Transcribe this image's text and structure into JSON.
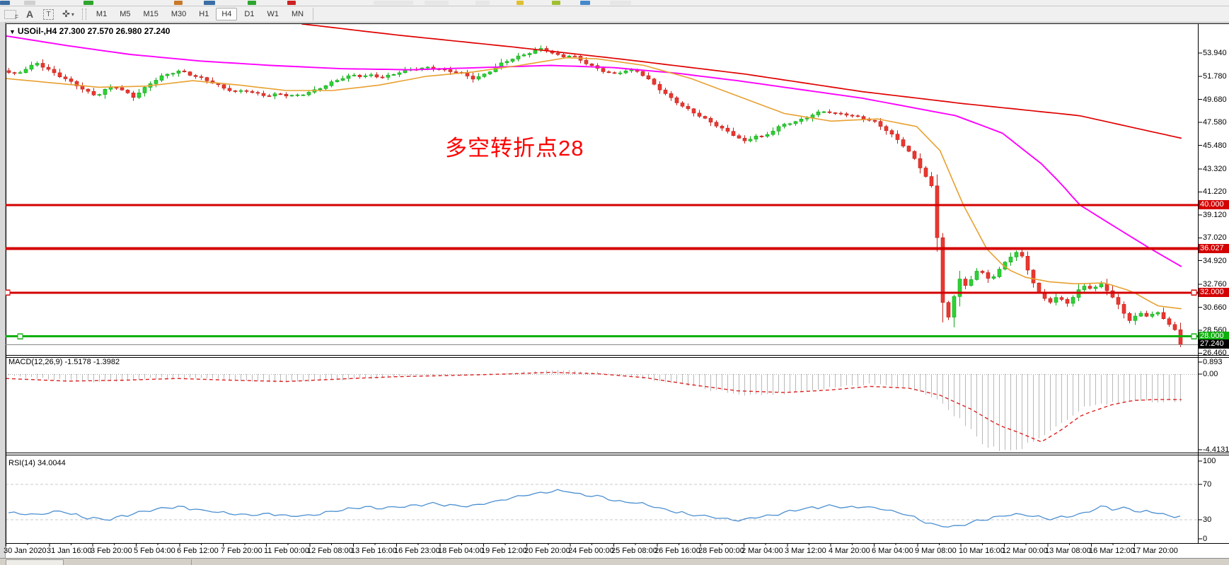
{
  "toolbar": {
    "tools": {
      "marker_label": "F",
      "font_label": "A",
      "text_label": "T",
      "cursor_glyph": "✜",
      "caret_glyph": "▾"
    },
    "timeframes": [
      "M1",
      "M5",
      "M15",
      "M30",
      "H1",
      "H4",
      "D1",
      "W1",
      "MN"
    ],
    "selected_timeframe": "H4"
  },
  "chart": {
    "dropdown_glyph": "▼",
    "title": "USOil-,H4  27.300 27.570 26.980 27.240",
    "annotation": {
      "text": "多空转折点28",
      "color": "#ff0000"
    }
  },
  "price_axis": {
    "ticks": [
      "53.940",
      "51.780",
      "49.680",
      "47.580",
      "45.480",
      "43.320",
      "41.220",
      "39.120",
      "37.020",
      "34.920",
      "32.760",
      "30.660",
      "28.560",
      "26.460"
    ],
    "tags": [
      {
        "label": "40.000",
        "color": "#d40000"
      },
      {
        "label": "36.027",
        "color": "#d40000"
      },
      {
        "label": "32.000",
        "color": "#d40000"
      },
      {
        "label": "28.000",
        "color": "#0cb00c"
      },
      {
        "label": "27.240",
        "color": "#000000"
      }
    ]
  },
  "macd_panel": {
    "label": "MACD(12,26,9) -1.5178 -1.3982",
    "axis_ticks": [
      "0.893",
      "0.00",
      "-4.4131"
    ]
  },
  "rsi_panel": {
    "label": "RSI(14) 34.0044",
    "axis_ticks": [
      "100",
      "70",
      "30",
      "0"
    ]
  },
  "time_axis": {
    "labels": [
      "30 Jan 2020",
      "31 Jan 16:00",
      "3 Feb 20:00",
      "5 Feb 04:00",
      "6 Feb 12:00",
      "7 Feb 20:00",
      "11 Feb 00:00",
      "12 Feb 08:00",
      "13 Feb 16:00",
      "16 Feb 23:00",
      "18 Feb 04:00",
      "19 Feb 12:00",
      "20 Feb 20:00",
      "24 Feb 00:00",
      "25 Feb 08:00",
      "26 Feb 16:00",
      "28 Feb 00:00",
      "2 Mar 04:00",
      "3 Mar 12:00",
      "4 Mar 20:00",
      "6 Mar 04:00",
      "9 Mar 08:00",
      "10 Mar 16:00",
      "12 Mar 00:00",
      "13 Mar 08:00",
      "16 Mar 12:00",
      "17 Mar 20:00"
    ]
  },
  "chart_data": {
    "type": "candlestick",
    "symbol": "USOil-",
    "timeframe": "H4",
    "ohlc_current": {
      "open": 27.3,
      "high": 27.57,
      "low": 26.98,
      "close": 27.24
    },
    "y_range": [
      26.46,
      56.65
    ],
    "horizontal_lines": [
      {
        "price": 40.0,
        "color": "#d40000",
        "width": 3,
        "markers": []
      },
      {
        "price": 36.027,
        "color": "#d40000",
        "width": 4,
        "markers": []
      },
      {
        "price": 32.0,
        "color": "#d40000",
        "width": 3,
        "markers": [
          10,
          1687
        ]
      },
      {
        "price": 28.0,
        "color": "#0cb00c",
        "width": 3,
        "markers": [
          28,
          1687
        ]
      },
      {
        "price": 27.24,
        "color": "#888888",
        "width": 1,
        "markers": []
      }
    ],
    "price_path": [
      [
        0,
        52.2
      ],
      [
        14,
        52.0
      ],
      [
        28,
        52.6
      ],
      [
        40,
        53.0
      ],
      [
        52,
        52.5
      ],
      [
        64,
        52.0
      ],
      [
        78,
        51.5
      ],
      [
        90,
        51.0
      ],
      [
        104,
        50.4
      ],
      [
        116,
        50.0
      ],
      [
        128,
        50.6
      ],
      [
        140,
        50.9
      ],
      [
        152,
        50.4
      ],
      [
        164,
        49.9
      ],
      [
        176,
        50.6
      ],
      [
        188,
        51.3
      ],
      [
        200,
        51.8
      ],
      [
        212,
        52.1
      ],
      [
        224,
        52.3
      ],
      [
        238,
        51.9
      ],
      [
        252,
        51.6
      ],
      [
        266,
        51.2
      ],
      [
        280,
        50.7
      ],
      [
        294,
        50.4
      ],
      [
        308,
        50.5
      ],
      [
        322,
        50.2
      ],
      [
        336,
        50.0
      ],
      [
        350,
        50.2
      ],
      [
        364,
        50.0
      ],
      [
        378,
        50.1
      ],
      [
        392,
        50.4
      ],
      [
        406,
        50.8
      ],
      [
        420,
        51.3
      ],
      [
        434,
        51.7
      ],
      [
        446,
        51.9
      ],
      [
        458,
        51.8
      ],
      [
        470,
        51.9
      ],
      [
        482,
        51.7
      ],
      [
        494,
        51.9
      ],
      [
        506,
        52.2
      ],
      [
        518,
        52.4
      ],
      [
        530,
        52.5
      ],
      [
        542,
        52.6
      ],
      [
        554,
        52.5
      ],
      [
        566,
        52.3
      ],
      [
        578,
        52.2
      ],
      [
        590,
        51.9
      ],
      [
        600,
        51.6
      ],
      [
        610,
        51.8
      ],
      [
        622,
        52.3
      ],
      [
        634,
        52.9
      ],
      [
        646,
        53.3
      ],
      [
        658,
        53.6
      ],
      [
        670,
        53.9
      ],
      [
        682,
        54.2
      ],
      [
        690,
        54.4
      ],
      [
        698,
        54.0
      ],
      [
        706,
        53.8
      ],
      [
        714,
        53.6
      ],
      [
        722,
        53.7
      ],
      [
        730,
        53.6
      ],
      [
        740,
        53.2
      ],
      [
        750,
        52.8
      ],
      [
        760,
        52.5
      ],
      [
        770,
        52.2
      ],
      [
        780,
        52.0
      ],
      [
        790,
        52.2
      ],
      [
        800,
        52.4
      ],
      [
        810,
        52.3
      ],
      [
        820,
        51.8
      ],
      [
        830,
        51.2
      ],
      [
        840,
        50.6
      ],
      [
        850,
        50.0
      ],
      [
        860,
        49.5
      ],
      [
        870,
        49.0
      ],
      [
        880,
        48.6
      ],
      [
        890,
        48.2
      ],
      [
        900,
        47.8
      ],
      [
        910,
        47.4
      ],
      [
        920,
        47.0
      ],
      [
        930,
        46.6
      ],
      [
        940,
        46.2
      ],
      [
        948,
        45.8
      ],
      [
        956,
        46.1
      ],
      [
        964,
        46.4
      ],
      [
        972,
        46.2
      ],
      [
        980,
        46.6
      ],
      [
        988,
        47.0
      ],
      [
        996,
        47.3
      ],
      [
        1004,
        47.5
      ],
      [
        1012,
        47.6
      ],
      [
        1020,
        47.8
      ],
      [
        1028,
        48.0
      ],
      [
        1036,
        48.3
      ],
      [
        1044,
        48.5
      ],
      [
        1052,
        48.6
      ],
      [
        1060,
        48.5
      ],
      [
        1068,
        48.3
      ],
      [
        1076,
        48.4
      ],
      [
        1084,
        48.2
      ],
      [
        1092,
        48.1
      ],
      [
        1100,
        48.0
      ],
      [
        1108,
        47.8
      ],
      [
        1116,
        47.6
      ],
      [
        1124,
        47.2
      ],
      [
        1132,
        46.8
      ],
      [
        1140,
        46.3
      ],
      [
        1148,
        45.8
      ],
      [
        1156,
        45.2
      ],
      [
        1164,
        44.5
      ],
      [
        1172,
        43.7
      ],
      [
        1180,
        42.8
      ],
      [
        1186,
        42.0
      ],
      [
        1192,
        41.3
      ],
      [
        1198,
        34.6
      ],
      [
        1204,
        30.5
      ],
      [
        1210,
        29.6
      ],
      [
        1216,
        31.2
      ],
      [
        1224,
        33.4
      ],
      [
        1232,
        32.6
      ],
      [
        1240,
        33.2
      ],
      [
        1248,
        34.2
      ],
      [
        1256,
        33.7
      ],
      [
        1264,
        33.0
      ],
      [
        1272,
        33.9
      ],
      [
        1280,
        34.5
      ],
      [
        1288,
        35.1
      ],
      [
        1296,
        35.7
      ],
      [
        1302,
        35.9
      ],
      [
        1308,
        34.6
      ],
      [
        1316,
        33.5
      ],
      [
        1324,
        32.2
      ],
      [
        1332,
        31.5
      ],
      [
        1340,
        31.1
      ],
      [
        1348,
        31.6
      ],
      [
        1356,
        31.3
      ],
      [
        1364,
        31.0
      ],
      [
        1372,
        31.8
      ],
      [
        1380,
        32.4
      ],
      [
        1388,
        32.7
      ],
      [
        1396,
        32.2
      ],
      [
        1404,
        32.9
      ],
      [
        1412,
        32.4
      ],
      [
        1420,
        31.7
      ],
      [
        1428,
        30.9
      ],
      [
        1436,
        30.1
      ],
      [
        1444,
        29.4
      ],
      [
        1452,
        29.9
      ],
      [
        1460,
        30.2
      ],
      [
        1468,
        29.7
      ],
      [
        1476,
        30.3
      ],
      [
        1484,
        29.9
      ],
      [
        1492,
        29.2
      ],
      [
        1500,
        28.7
      ],
      [
        1506,
        27.8
      ],
      [
        1512,
        27.24
      ]
    ],
    "ma_fast_orange": [
      [
        0,
        51.6
      ],
      [
        60,
        51.2
      ],
      [
        120,
        50.8
      ],
      [
        180,
        50.9
      ],
      [
        240,
        51.4
      ],
      [
        300,
        51.0
      ],
      [
        360,
        50.5
      ],
      [
        420,
        50.5
      ],
      [
        480,
        51.0
      ],
      [
        540,
        51.8
      ],
      [
        600,
        52.2
      ],
      [
        660,
        52.8
      ],
      [
        720,
        53.5
      ],
      [
        760,
        53.4
      ],
      [
        820,
        52.8
      ],
      [
        880,
        51.6
      ],
      [
        940,
        50.0
      ],
      [
        1000,
        48.4
      ],
      [
        1060,
        47.7
      ],
      [
        1120,
        47.9
      ],
      [
        1170,
        47.2
      ],
      [
        1200,
        45.0
      ],
      [
        1230,
        40.0
      ],
      [
        1260,
        36.0
      ],
      [
        1285,
        34.2
      ],
      [
        1310,
        33.4
      ],
      [
        1340,
        33.0
      ],
      [
        1374,
        32.8
      ],
      [
        1411,
        32.9
      ],
      [
        1447,
        32.1
      ],
      [
        1479,
        30.8
      ],
      [
        1512,
        30.5
      ]
    ],
    "ma_mid_magenta": [
      [
        0,
        55.5
      ],
      [
        80,
        54.6
      ],
      [
        160,
        53.8
      ],
      [
        250,
        53.2
      ],
      [
        340,
        52.8
      ],
      [
        430,
        52.5
      ],
      [
        520,
        52.4
      ],
      [
        610,
        52.6
      ],
      [
        700,
        52.8
      ],
      [
        780,
        52.6
      ],
      [
        860,
        52.1
      ],
      [
        940,
        51.4
      ],
      [
        1020,
        50.6
      ],
      [
        1100,
        49.8
      ],
      [
        1160,
        49.0
      ],
      [
        1220,
        48.2
      ],
      [
        1280,
        46.6
      ],
      [
        1330,
        43.8
      ],
      [
        1355,
        42.0
      ],
      [
        1379,
        40.05
      ],
      [
        1425,
        38.0
      ],
      [
        1470,
        36.03
      ],
      [
        1512,
        34.3
      ]
    ],
    "ma_slow_red": [
      [
        380,
        56.6
      ],
      [
        500,
        55.6
      ],
      [
        650,
        54.5
      ],
      [
        800,
        53.3
      ],
      [
        950,
        52.0
      ],
      [
        1100,
        50.4
      ],
      [
        1230,
        49.3
      ],
      [
        1379,
        48.2
      ],
      [
        1512,
        46.1
      ]
    ],
    "macd": {
      "values": [
        -1.5178,
        -1.3982
      ],
      "range": [
        0.893,
        -4.4131
      ],
      "histogram": [
        [
          0,
          -0.1
        ],
        [
          60,
          -0.3
        ],
        [
          120,
          -0.45
        ],
        [
          180,
          -0.25
        ],
        [
          240,
          -0.2
        ],
        [
          300,
          -0.35
        ],
        [
          360,
          -0.45
        ],
        [
          420,
          -0.35
        ],
        [
          480,
          -0.2
        ],
        [
          540,
          -0.1
        ],
        [
          600,
          -0.05
        ],
        [
          660,
          0.08
        ],
        [
          710,
          0.25
        ],
        [
          760,
          0.1
        ],
        [
          810,
          -0.15
        ],
        [
          860,
          -0.55
        ],
        [
          910,
          -0.95
        ],
        [
          960,
          -1.2
        ],
        [
          1010,
          -1.05
        ],
        [
          1060,
          -0.75
        ],
        [
          1110,
          -0.55
        ],
        [
          1155,
          -0.7
        ],
        [
          1195,
          -1.4
        ],
        [
          1225,
          -2.6
        ],
        [
          1255,
          -3.9
        ],
        [
          1280,
          -4.41
        ],
        [
          1305,
          -4.2
        ],
        [
          1330,
          -3.6
        ],
        [
          1355,
          -2.9
        ],
        [
          1382,
          -1.9
        ],
        [
          1410,
          -1.7
        ],
        [
          1440,
          -1.6
        ],
        [
          1470,
          -1.55
        ],
        [
          1512,
          -1.52
        ]
      ],
      "signal": [
        [
          0,
          -0.25
        ],
        [
          80,
          -0.4
        ],
        [
          150,
          -0.35
        ],
        [
          220,
          -0.25
        ],
        [
          290,
          -0.35
        ],
        [
          360,
          -0.42
        ],
        [
          430,
          -0.28
        ],
        [
          500,
          -0.15
        ],
        [
          570,
          -0.08
        ],
        [
          640,
          0.0
        ],
        [
          700,
          0.1
        ],
        [
          760,
          0.02
        ],
        [
          820,
          -0.2
        ],
        [
          880,
          -0.6
        ],
        [
          940,
          -0.95
        ],
        [
          1000,
          -1.05
        ],
        [
          1060,
          -0.9
        ],
        [
          1110,
          -0.7
        ],
        [
          1160,
          -0.8
        ],
        [
          1200,
          -1.2
        ],
        [
          1240,
          -2.0
        ],
        [
          1275,
          -2.9
        ],
        [
          1300,
          -3.3
        ],
        [
          1330,
          -3.85
        ],
        [
          1355,
          -3.2
        ],
        [
          1382,
          -2.33
        ],
        [
          1420,
          -1.75
        ],
        [
          1447,
          -1.5
        ],
        [
          1480,
          -1.44
        ],
        [
          1512,
          -1.45
        ]
      ]
    },
    "rsi": {
      "period": 14,
      "value": 34.0044,
      "levels": [
        70,
        30
      ],
      "path": [
        [
          0,
          38
        ],
        [
          40,
          35
        ],
        [
          70,
          40
        ],
        [
          100,
          33
        ],
        [
          130,
          30
        ],
        [
          160,
          36
        ],
        [
          190,
          42
        ],
        [
          220,
          45
        ],
        [
          250,
          41
        ],
        [
          280,
          38
        ],
        [
          310,
          35
        ],
        [
          340,
          37
        ],
        [
          370,
          34
        ],
        [
          400,
          36
        ],
        [
          430,
          41
        ],
        [
          460,
          44
        ],
        [
          490,
          43
        ],
        [
          520,
          46
        ],
        [
          550,
          48
        ],
        [
          580,
          45
        ],
        [
          610,
          47
        ],
        [
          640,
          53
        ],
        [
          670,
          58
        ],
        [
          700,
          62
        ],
        [
          720,
          63
        ],
        [
          740,
          58
        ],
        [
          760,
          57
        ],
        [
          780,
          52
        ],
        [
          800,
          50
        ],
        [
          820,
          48
        ],
        [
          840,
          43
        ],
        [
          860,
          39
        ],
        [
          880,
          36
        ],
        [
          900,
          34
        ],
        [
          920,
          31
        ],
        [
          940,
          29
        ],
        [
          960,
          32
        ],
        [
          980,
          35
        ],
        [
          1000,
          38
        ],
        [
          1020,
          42
        ],
        [
          1040,
          44
        ],
        [
          1060,
          46
        ],
        [
          1080,
          44
        ],
        [
          1100,
          45
        ],
        [
          1120,
          43
        ],
        [
          1140,
          40
        ],
        [
          1160,
          35
        ],
        [
          1180,
          28
        ],
        [
          1200,
          23
        ],
        [
          1220,
          22
        ],
        [
          1240,
          27
        ],
        [
          1260,
          31
        ],
        [
          1280,
          34
        ],
        [
          1300,
          37
        ],
        [
          1320,
          34
        ],
        [
          1340,
          31
        ],
        [
          1360,
          33
        ],
        [
          1380,
          36
        ],
        [
          1395,
          40
        ],
        [
          1411,
          46
        ],
        [
          1425,
          41
        ],
        [
          1440,
          44
        ],
        [
          1455,
          38
        ],
        [
          1470,
          40
        ],
        [
          1485,
          36
        ],
        [
          1497,
          33
        ],
        [
          1512,
          34
        ]
      ]
    },
    "colors": {
      "up": "#2fd136",
      "up_border": "#0da614",
      "down": "#ea3830",
      "down_border": "#c2201a",
      "ma_fast": "#e8a030",
      "ma_mid": "#ff00ff",
      "ma_slow": "#e00000",
      "macd_hist": "#b9b9b9",
      "macd_signal": "#dd2222",
      "rsi_line": "#4a8fd0"
    }
  }
}
